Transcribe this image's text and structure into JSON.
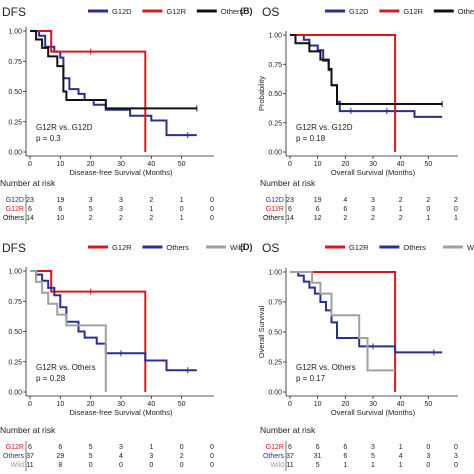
{
  "chart_data": [
    {
      "type": "line",
      "panel_label": "",
      "title": "DFS",
      "xlabel": "Disease-free Survival (Months)",
      "ylabel": "",
      "xlim": [
        0,
        60
      ],
      "ylim": [
        0,
        1
      ],
      "x_ticks": [
        "0",
        "10",
        "20",
        "30",
        "40",
        "50"
      ],
      "y_ticks": [
        "0.00",
        "0.25",
        "0.50",
        "0.75",
        "1.00"
      ],
      "legend_position": "top",
      "annotation_comparison": "G12R vs. G12D",
      "annotation_p": "p = 0.3",
      "series": [
        {
          "name": "G12D",
          "color": "#2b2f8f",
          "points": [
            [
              0,
              1
            ],
            [
              3,
              1
            ],
            [
              3,
              0.96
            ],
            [
              5,
              0.96
            ],
            [
              5,
              0.87
            ],
            [
              8,
              0.87
            ],
            [
              8,
              0.83
            ],
            [
              10,
              0.83
            ],
            [
              10,
              0.78
            ],
            [
              11,
              0.78
            ],
            [
              11,
              0.61
            ],
            [
              13,
              0.61
            ],
            [
              13,
              0.52
            ],
            [
              16,
              0.52
            ],
            [
              16,
              0.48
            ],
            [
              18,
              0.48
            ],
            [
              18,
              0.43
            ],
            [
              21,
              0.43
            ],
            [
              21,
              0.39
            ],
            [
              25,
              0.39
            ],
            [
              25,
              0.35
            ],
            [
              33,
              0.35
            ],
            [
              33,
              0.3
            ],
            [
              40,
              0.3
            ],
            [
              40,
              0.26
            ],
            [
              45,
              0.26
            ],
            [
              45,
              0.14
            ],
            [
              55,
              0.14
            ]
          ],
          "censor_x": [
            52
          ]
        },
        {
          "name": "G12R",
          "color": "#d7191c",
          "points": [
            [
              0,
              1
            ],
            [
              7,
              1
            ],
            [
              7,
              0.83
            ],
            [
              38,
              0.83
            ],
            [
              38,
              0
            ]
          ],
          "censor_x": [
            20
          ]
        },
        {
          "name": "Others",
          "color": "#111111",
          "points": [
            [
              0,
              1
            ],
            [
              2,
              1
            ],
            [
              2,
              0.93
            ],
            [
              4,
              0.93
            ],
            [
              4,
              0.86
            ],
            [
              6,
              0.86
            ],
            [
              6,
              0.79
            ],
            [
              9,
              0.79
            ],
            [
              9,
              0.71
            ],
            [
              11,
              0.71
            ],
            [
              11,
              0.5
            ],
            [
              12,
              0.5
            ],
            [
              12,
              0.43
            ],
            [
              25,
              0.43
            ],
            [
              25,
              0.36
            ],
            [
              55,
              0.36
            ]
          ],
          "censor_x": [
            55
          ]
        }
      ],
      "risk_table": {
        "title": "Number at risk",
        "rows": [
          {
            "label": "G12D",
            "color": "#2b2f8f",
            "values": [
              "23",
              "19",
              "3",
              "3",
              "2",
              "1",
              "0"
            ]
          },
          {
            "label": "G12R",
            "color": "#d7191c",
            "values": [
              "6",
              "6",
              "5",
              "3",
              "1",
              "0",
              "0"
            ]
          },
          {
            "label": "Others",
            "color": "#111111",
            "values": [
              "14",
              "10",
              "2",
              "2",
              "2",
              "1",
              "0"
            ]
          }
        ]
      }
    },
    {
      "type": "line",
      "panel_label": "(B)",
      "title": "OS",
      "xlabel": "Overall Survival (Months)",
      "ylabel": "Probability",
      "xlim": [
        0,
        60
      ],
      "ylim": [
        0,
        1
      ],
      "x_ticks": [
        "0",
        "10",
        "20",
        "30",
        "40",
        "50"
      ],
      "y_ticks": [
        "0.00",
        "0.25",
        "0.50",
        "0.75",
        "1.00"
      ],
      "legend_position": "top",
      "annotation_comparison": "G12R vs. G12D",
      "annotation_p": "p = 0.18",
      "series": [
        {
          "name": "G12D",
          "color": "#2b2f8f",
          "points": [
            [
              0,
              1
            ],
            [
              5,
              1
            ],
            [
              5,
              0.96
            ],
            [
              7,
              0.96
            ],
            [
              7,
              0.91
            ],
            [
              10,
              0.91
            ],
            [
              10,
              0.87
            ],
            [
              12,
              0.87
            ],
            [
              12,
              0.78
            ],
            [
              14,
              0.78
            ],
            [
              14,
              0.7
            ],
            [
              15,
              0.7
            ],
            [
              15,
              0.57
            ],
            [
              17,
              0.57
            ],
            [
              17,
              0.43
            ],
            [
              18,
              0.43
            ],
            [
              18,
              0.35
            ],
            [
              45,
              0.35
            ],
            [
              45,
              0.3
            ],
            [
              55,
              0.3
            ]
          ],
          "censor_x": [
            22,
            35
          ]
        },
        {
          "name": "G12R",
          "color": "#d7191c",
          "points": [
            [
              0,
              1
            ],
            [
              38,
              1
            ],
            [
              38,
              0
            ]
          ],
          "censor_x": []
        },
        {
          "name": "Others",
          "color": "#111111",
          "points": [
            [
              0,
              1
            ],
            [
              2,
              1
            ],
            [
              2,
              0.93
            ],
            [
              7,
              0.93
            ],
            [
              7,
              0.86
            ],
            [
              11,
              0.86
            ],
            [
              11,
              0.79
            ],
            [
              14,
              0.79
            ],
            [
              14,
              0.71
            ],
            [
              15,
              0.71
            ],
            [
              15,
              0.57
            ],
            [
              17,
              0.57
            ],
            [
              17,
              0.41
            ],
            [
              55,
              0.41
            ]
          ],
          "censor_x": [
            55
          ]
        }
      ],
      "risk_table": {
        "title": "Number at risk",
        "rows": [
          {
            "label": "G12D",
            "color": "#2b2f8f",
            "values": [
              "23",
              "19",
              "4",
              "3",
              "2",
              "2",
              "2"
            ]
          },
          {
            "label": "G12R",
            "color": "#d7191c",
            "values": [
              "6",
              "6",
              "6",
              "3",
              "1",
              "0",
              "0"
            ]
          },
          {
            "label": "Others",
            "color": "#111111",
            "values": [
              "14",
              "12",
              "2",
              "2",
              "2",
              "1",
              "1"
            ]
          }
        ]
      }
    },
    {
      "type": "line",
      "panel_label": "",
      "title": "DFS",
      "xlabel": "Disease-free Survival (Months)",
      "ylabel": "",
      "xlim": [
        0,
        60
      ],
      "ylim": [
        0,
        1
      ],
      "x_ticks": [
        "0",
        "10",
        "20",
        "30",
        "40",
        "50"
      ],
      "y_ticks": [
        "0.00",
        "0.25",
        "0.50",
        "0.75",
        "1.00"
      ],
      "legend_position": "top",
      "annotation_comparison": "G12R vs. Others",
      "annotation_p": "p = 0.28",
      "series": [
        {
          "name": "G12R",
          "color": "#d7191c",
          "points": [
            [
              0,
              1
            ],
            [
              7,
              1
            ],
            [
              7,
              0.83
            ],
            [
              38,
              0.83
            ],
            [
              38,
              0
            ]
          ],
          "censor_x": [
            20
          ]
        },
        {
          "name": "Others",
          "color": "#2b2f8f",
          "points": [
            [
              0,
              1
            ],
            [
              2,
              1
            ],
            [
              2,
              0.97
            ],
            [
              4,
              0.97
            ],
            [
              4,
              0.92
            ],
            [
              6,
              0.92
            ],
            [
              6,
              0.86
            ],
            [
              8,
              0.86
            ],
            [
              8,
              0.8
            ],
            [
              10,
              0.8
            ],
            [
              10,
              0.7
            ],
            [
              12,
              0.7
            ],
            [
              12,
              0.58
            ],
            [
              16,
              0.58
            ],
            [
              16,
              0.5
            ],
            [
              18,
              0.5
            ],
            [
              18,
              0.45
            ],
            [
              22,
              0.45
            ],
            [
              22,
              0.4
            ],
            [
              25,
              0.4
            ],
            [
              25,
              0.32
            ],
            [
              38,
              0.32
            ],
            [
              38,
              0.26
            ],
            [
              45,
              0.26
            ],
            [
              45,
              0.18
            ],
            [
              55,
              0.18
            ]
          ],
          "censor_x": [
            30,
            52
          ]
        },
        {
          "name": "Wild",
          "color": "#a0a0a0",
          "points": [
            [
              0,
              1
            ],
            [
              2,
              1
            ],
            [
              2,
              0.91
            ],
            [
              4,
              0.91
            ],
            [
              4,
              0.82
            ],
            [
              6,
              0.82
            ],
            [
              6,
              0.73
            ],
            [
              9,
              0.73
            ],
            [
              9,
              0.64
            ],
            [
              12,
              0.64
            ],
            [
              12,
              0.55
            ],
            [
              25,
              0.55
            ],
            [
              25,
              0
            ]
          ],
          "censor_x": []
        }
      ],
      "risk_table": {
        "title": "Number at risk",
        "rows": [
          {
            "label": "G12R",
            "color": "#d7191c",
            "values": [
              "6",
              "6",
              "5",
              "3",
              "1",
              "0",
              "0"
            ]
          },
          {
            "label": "Others",
            "color": "#2b2f8f",
            "values": [
              "37",
              "29",
              "5",
              "4",
              "3",
              "2",
              "0"
            ]
          },
          {
            "label": "Wild",
            "color": "#a0a0a0",
            "values": [
              "11",
              "8",
              "0",
              "0",
              "0",
              "0",
              "0"
            ]
          }
        ]
      }
    },
    {
      "type": "line",
      "panel_label": "(D)",
      "title": "OS",
      "xlabel": "Overall Survival (Months)",
      "ylabel": "Overall Survival",
      "xlim": [
        0,
        60
      ],
      "ylim": [
        0,
        1
      ],
      "x_ticks": [
        "0",
        "10",
        "20",
        "30",
        "40",
        "50"
      ],
      "y_ticks": [
        "0.00",
        "0.25",
        "0.50",
        "0.75",
        "1.00"
      ],
      "legend_position": "top",
      "annotation_comparison": "G12R vs. Others",
      "annotation_p": "p = 0.17",
      "series": [
        {
          "name": "G12R",
          "color": "#d7191c",
          "points": [
            [
              0,
              1
            ],
            [
              38,
              1
            ],
            [
              38,
              0
            ]
          ],
          "censor_x": []
        },
        {
          "name": "Others",
          "color": "#2b2f8f",
          "points": [
            [
              0,
              1
            ],
            [
              3,
              1
            ],
            [
              3,
              0.97
            ],
            [
              5,
              0.97
            ],
            [
              5,
              0.92
            ],
            [
              7,
              0.92
            ],
            [
              7,
              0.87
            ],
            [
              9,
              0.87
            ],
            [
              9,
              0.82
            ],
            [
              11,
              0.82
            ],
            [
              11,
              0.75
            ],
            [
              13,
              0.75
            ],
            [
              13,
              0.68
            ],
            [
              15,
              0.68
            ],
            [
              15,
              0.58
            ],
            [
              17,
              0.58
            ],
            [
              17,
              0.45
            ],
            [
              25,
              0.45
            ],
            [
              25,
              0.38
            ],
            [
              38,
              0.38
            ],
            [
              38,
              0.33
            ],
            [
              55,
              0.33
            ]
          ],
          "censor_x": [
            30,
            52
          ]
        },
        {
          "name": "Wild",
          "color": "#a0a0a0",
          "points": [
            [
              0,
              1
            ],
            [
              8,
              1
            ],
            [
              8,
              0.91
            ],
            [
              11,
              0.91
            ],
            [
              11,
              0.82
            ],
            [
              15,
              0.82
            ],
            [
              15,
              0.64
            ],
            [
              25,
              0.64
            ],
            [
              25,
              0.45
            ],
            [
              28,
              0.45
            ],
            [
              28,
              0.18
            ],
            [
              38,
              0.18
            ]
          ],
          "censor_x": []
        }
      ],
      "risk_table": {
        "title": "Number at risk",
        "rows": [
          {
            "label": "G12R",
            "color": "#d7191c",
            "values": [
              "6",
              "6",
              "6",
              "3",
              "1",
              "0",
              "0"
            ]
          },
          {
            "label": "Others",
            "color": "#2b2f8f",
            "values": [
              "37",
              "31",
              "6",
              "5",
              "4",
              "3",
              "3"
            ]
          },
          {
            "label": "Wild",
            "color": "#a0a0a0",
            "values": [
              "11",
              "5",
              "1",
              "1",
              "1",
              "0",
              "0"
            ]
          }
        ]
      }
    }
  ]
}
